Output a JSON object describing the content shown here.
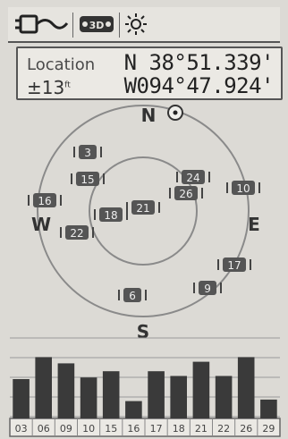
{
  "status_bar": {
    "icons": [
      "power-plug-icon",
      "satellite-3d-icon",
      "backlight-sun-icon"
    ]
  },
  "location": {
    "label": "Location",
    "accuracy_prefix": "±",
    "accuracy_value": "13",
    "accuracy_unit": "ft",
    "latitude": "N 38°51.339'",
    "longitude": "W094°47.924'"
  },
  "sky": {
    "north": "N",
    "east": "E",
    "south": "S",
    "west": "W",
    "satellites": [
      {
        "id": "03",
        "label": "3"
      },
      {
        "id": "15",
        "label": "15"
      },
      {
        "id": "16",
        "label": "16"
      },
      {
        "id": "22",
        "label": "22"
      },
      {
        "id": "18",
        "label": "18"
      },
      {
        "id": "21",
        "label": "21"
      },
      {
        "id": "24",
        "label": "24"
      },
      {
        "id": "26",
        "label": "26"
      },
      {
        "id": "10",
        "label": "10"
      },
      {
        "id": "17",
        "label": "17"
      },
      {
        "id": "09",
        "label": "9"
      },
      {
        "id": "06",
        "label": "6"
      }
    ]
  },
  "signal_bars": [
    {
      "sat": "03",
      "level": 0.5
    },
    {
      "sat": "06",
      "level": 0.78
    },
    {
      "sat": "09",
      "level": 0.7
    },
    {
      "sat": "10",
      "level": 0.52
    },
    {
      "sat": "15",
      "level": 0.6
    },
    {
      "sat": "16",
      "level": 0.22
    },
    {
      "sat": "17",
      "level": 0.6
    },
    {
      "sat": "18",
      "level": 0.54
    },
    {
      "sat": "21",
      "level": 0.72
    },
    {
      "sat": "22",
      "level": 0.54
    },
    {
      "sat": "26",
      "level": 0.78
    },
    {
      "sat": "29",
      "level": 0.24
    }
  ]
}
